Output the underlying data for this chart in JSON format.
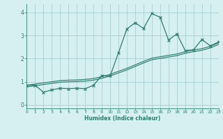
{
  "xlabel": "Humidex (Indice chaleur)",
  "background_color": "#d6eff0",
  "line_color": "#2e7d6e",
  "grid_color": "#a0c8cc",
  "xlim": [
    0,
    23
  ],
  "ylim": [
    -0.15,
    4.35
  ],
  "xticks": [
    0,
    1,
    2,
    3,
    4,
    5,
    6,
    7,
    8,
    9,
    10,
    11,
    12,
    13,
    14,
    15,
    16,
    17,
    18,
    19,
    20,
    21,
    22,
    23
  ],
  "yticks": [
    0,
    1,
    2,
    3,
    4
  ],
  "line1_x": [
    0,
    1,
    2,
    3,
    4,
    5,
    6,
    7,
    8,
    9,
    10,
    11,
    12,
    13,
    14,
    15,
    16,
    17,
    18,
    19,
    20,
    21,
    22,
    23
  ],
  "line1_y": [
    0.85,
    0.85,
    0.55,
    0.65,
    0.72,
    0.7,
    0.72,
    0.7,
    0.85,
    1.27,
    1.25,
    2.25,
    3.28,
    3.55,
    3.3,
    3.95,
    3.78,
    2.8,
    3.07,
    2.35,
    2.38,
    2.83,
    2.55,
    2.72
  ],
  "line2_x": [
    0,
    1,
    2,
    3,
    4,
    5,
    6,
    7,
    8,
    9,
    10,
    11,
    12,
    13,
    14,
    15,
    16,
    17,
    18,
    19,
    20,
    21,
    22,
    23
  ],
  "line2_y": [
    0.85,
    0.9,
    0.95,
    1.0,
    1.05,
    1.07,
    1.08,
    1.1,
    1.14,
    1.22,
    1.32,
    1.45,
    1.58,
    1.73,
    1.88,
    2.02,
    2.08,
    2.14,
    2.2,
    2.3,
    2.37,
    2.43,
    2.53,
    2.68
  ],
  "line3_x": [
    0,
    1,
    2,
    3,
    4,
    5,
    6,
    7,
    8,
    9,
    10,
    11,
    12,
    13,
    14,
    15,
    16,
    17,
    18,
    19,
    20,
    21,
    22,
    23
  ],
  "line3_y": [
    0.78,
    0.83,
    0.88,
    0.93,
    0.98,
    1.0,
    1.01,
    1.03,
    1.07,
    1.15,
    1.25,
    1.38,
    1.51,
    1.66,
    1.81,
    1.95,
    2.01,
    2.07,
    2.13,
    2.23,
    2.3,
    2.36,
    2.46,
    2.61
  ]
}
